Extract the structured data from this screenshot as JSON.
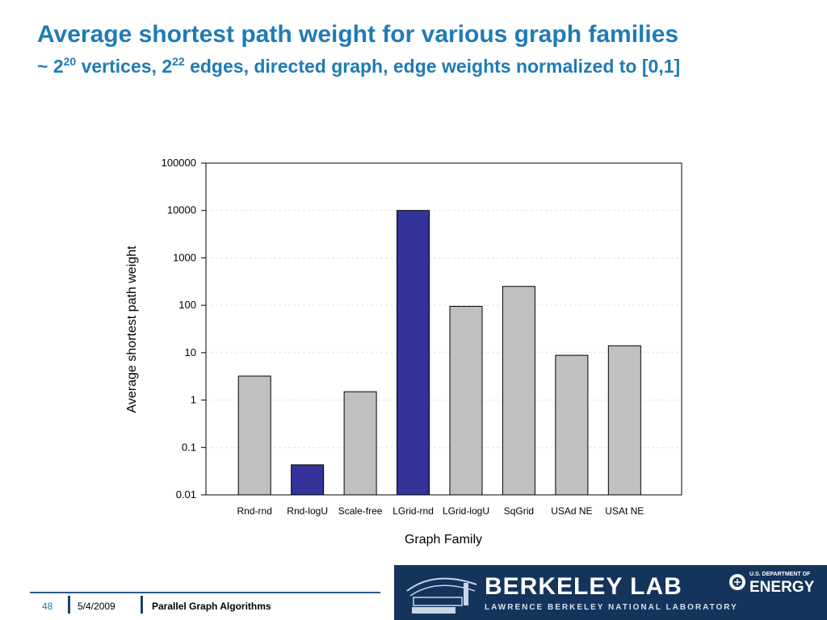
{
  "slide": {
    "title": "Average shortest path weight for various graph families",
    "subtitle": {
      "prefix": "~ 2",
      "exp1": "20",
      "middle": " vertices, 2",
      "exp2": "22",
      "suffix": " edges, directed graph, edge weights normalized to [0,1]"
    }
  },
  "chart_data": {
    "type": "bar",
    "xlabel": "Graph Family",
    "ylabel": "Average shortest path weight",
    "scale": "log",
    "ylim": [
      0.01,
      100000
    ],
    "yticks": [
      "0.01",
      "0.1",
      "1",
      "10",
      "100",
      "1000",
      "10000",
      "100000"
    ],
    "categories": [
      "Rnd-rnd",
      "Rnd-logU",
      "Scale-free",
      "LGrid-rnd",
      "LGrid-logU",
      "SqGrid",
      "USAd NE",
      "USAt NE"
    ],
    "values": [
      3.2,
      0.043,
      1.5,
      10000,
      95,
      250,
      8.8,
      14
    ],
    "colors": [
      "#c0c0c0",
      "#333399",
      "#c0c0c0",
      "#333399",
      "#c0c0c0",
      "#c0c0c0",
      "#c0c0c0",
      "#c0c0c0"
    ],
    "grid": true
  },
  "footer": {
    "page_number": "48",
    "date": "5/4/2009",
    "talk_title": "Parallel Graph Algorithms"
  },
  "banner": {
    "lab_name": "BERKELEY LAB",
    "lab_full": "LAWRENCE BERKELEY NATIONAL LABORATORY",
    "doe_top": "U.S. DEPARTMENT OF",
    "doe_word": "ENERGY"
  }
}
